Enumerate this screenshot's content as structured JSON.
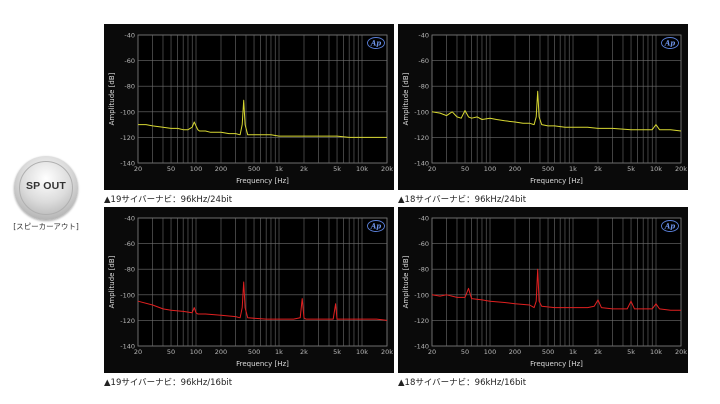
{
  "badge": {
    "label": "SP OUT",
    "caption": "[スピーカーアウト]"
  },
  "axis_common": {
    "xlabel": "Frequency [Hz]",
    "ylabel": "Amplitude [dB]",
    "ylim": [
      -140,
      -40
    ],
    "yticks": [
      -40,
      -60,
      -80,
      -100,
      -120,
      -140
    ],
    "xticks": [
      20,
      50,
      100,
      200,
      500,
      1000,
      2000,
      5000,
      10000,
      20000
    ],
    "xtick_labels": [
      "20",
      "50",
      "100",
      "200",
      "500",
      "1k",
      "2k",
      "5k",
      "10k",
      "20k"
    ],
    "xscale": "log",
    "xlim": [
      20,
      20000
    ],
    "logo": "Ap"
  },
  "chart_data": [
    {
      "type": "line",
      "caption": "▲19サイバーナビ：96kHz/24bit",
      "color": "#d8d832",
      "x": [
        20,
        25,
        30,
        40,
        50,
        60,
        70,
        80,
        90,
        95,
        100,
        105,
        110,
        130,
        150,
        200,
        250,
        300,
        340,
        360,
        375,
        390,
        420,
        500,
        600,
        800,
        1000,
        1500,
        2000,
        3000,
        5000,
        7000,
        10000,
        15000,
        20000
      ],
      "y": [
        -110,
        -110,
        -111,
        -112,
        -113,
        -113,
        -114,
        -114,
        -112,
        -108,
        -111,
        -114,
        -115,
        -115,
        -116,
        -116,
        -117,
        -117,
        -118,
        -110,
        -91,
        -110,
        -118,
        -118,
        -118,
        -118,
        -119,
        -119,
        -119,
        -119,
        -119,
        -120,
        -120,
        -120,
        -120
      ]
    },
    {
      "type": "line",
      "caption": "▲18サイバーナビ：96kHz/24bit",
      "color": "#d8d832",
      "x": [
        20,
        25,
        30,
        35,
        40,
        45,
        50,
        55,
        60,
        70,
        80,
        100,
        120,
        150,
        200,
        250,
        300,
        340,
        360,
        375,
        390,
        420,
        500,
        600,
        800,
        1000,
        1500,
        2000,
        3000,
        5000,
        7000,
        9000,
        10000,
        11000,
        15000,
        20000
      ],
      "y": [
        -100,
        -101,
        -103,
        -100,
        -104,
        -105,
        -99,
        -104,
        -105,
        -104,
        -106,
        -105,
        -106,
        -107,
        -108,
        -109,
        -109,
        -110,
        -104,
        -84,
        -104,
        -110,
        -111,
        -111,
        -112,
        -112,
        -112,
        -113,
        -113,
        -114,
        -114,
        -114,
        -110,
        -114,
        -114,
        -115
      ]
    },
    {
      "type": "line",
      "caption": "▲19サイバーナビ：96kHz/16bit",
      "color": "#e02020",
      "x": [
        20,
        30,
        40,
        50,
        70,
        90,
        95,
        100,
        105,
        130,
        200,
        300,
        340,
        360,
        375,
        390,
        420,
        700,
        1000,
        1500,
        1800,
        1900,
        2000,
        2100,
        3000,
        4500,
        4800,
        5000,
        5200,
        7000,
        10000,
        15000,
        20000
      ],
      "y": [
        -105,
        -108,
        -111,
        -112,
        -113,
        -114,
        -110,
        -114,
        -115,
        -115,
        -116,
        -117,
        -118,
        -110,
        -90,
        -110,
        -118,
        -119,
        -119,
        -119,
        -118,
        -103,
        -118,
        -119,
        -119,
        -119,
        -107,
        -119,
        -119,
        -119,
        -119,
        -119,
        -120
      ]
    },
    {
      "type": "line",
      "caption": "▲18サイバーナビ：96kHz/16bit",
      "color": "#e02020",
      "x": [
        20,
        25,
        30,
        40,
        50,
        55,
        60,
        80,
        100,
        150,
        200,
        300,
        340,
        360,
        375,
        390,
        420,
        600,
        1000,
        1500,
        1800,
        2000,
        2200,
        3000,
        4500,
        5000,
        5500,
        7000,
        9000,
        10000,
        11000,
        15000,
        20000
      ],
      "y": [
        -100,
        -101,
        -100,
        -102,
        -102,
        -95,
        -103,
        -104,
        -105,
        -106,
        -107,
        -108,
        -110,
        -105,
        -80,
        -105,
        -109,
        -110,
        -110,
        -110,
        -109,
        -104,
        -110,
        -111,
        -111,
        -105,
        -111,
        -111,
        -111,
        -107,
        -111,
        -112,
        -112
      ]
    }
  ]
}
